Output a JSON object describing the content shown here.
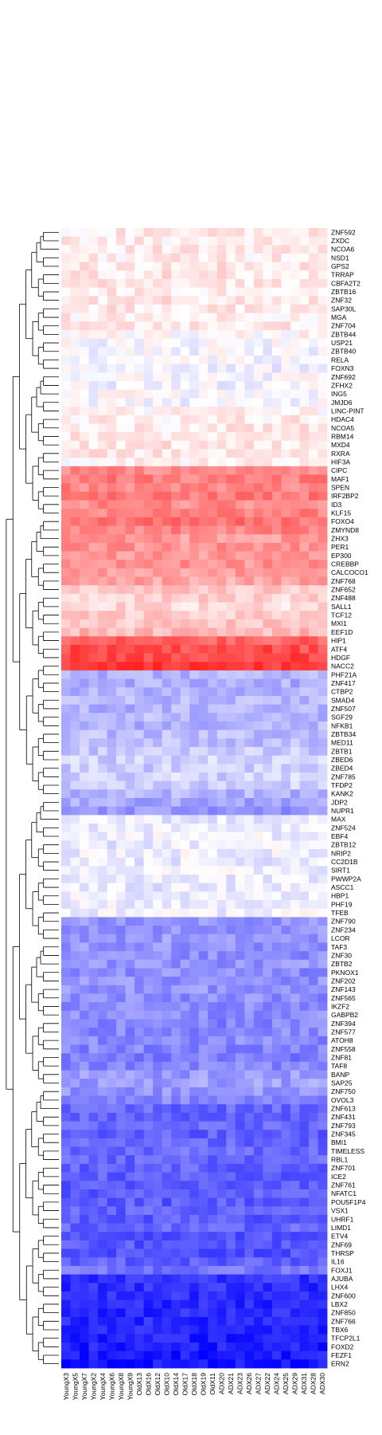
{
  "chart_data": {
    "type": "heatmap",
    "title": "",
    "color_scale": {
      "low": "#0000ff",
      "mid": "#ffffff",
      "high": "#ff0000",
      "range": [
        -1,
        1
      ]
    },
    "columns": [
      "YoungX3",
      "YoungX5",
      "YoungX7",
      "YoungX2",
      "YoungX4",
      "YoungX6",
      "YoungX8",
      "YoungX9",
      "OldX13",
      "OldX16",
      "OldX12",
      "OldX10",
      "OldX14",
      "OldX17",
      "OldX18",
      "OldX19",
      "OldX11",
      "ADX20",
      "ADX21",
      "ADX23",
      "ADX26",
      "ADX27",
      "ADX22",
      "ADX24",
      "ADX25",
      "ADX29",
      "ADX31",
      "ADX28",
      "ADX30"
    ],
    "rows": [
      {
        "label": "ZNF592",
        "value": 0.08
      },
      {
        "label": "ZXDC",
        "value": 0.07
      },
      {
        "label": "NCOA6",
        "value": 0.08
      },
      {
        "label": "NSD1",
        "value": 0.07
      },
      {
        "label": "GPS2",
        "value": 0.09
      },
      {
        "label": "TRRAP",
        "value": 0.1
      },
      {
        "label": "CBFA2T2",
        "value": 0.09
      },
      {
        "label": "ZBTB16",
        "value": 0.08
      },
      {
        "label": "ZNF32",
        "value": 0.1
      },
      {
        "label": "SAP30L",
        "value": 0.09
      },
      {
        "label": "MGA",
        "value": 0.07
      },
      {
        "label": "ZNF704",
        "value": 0.08
      },
      {
        "label": "ZBTB44",
        "value": 0.02
      },
      {
        "label": "USP21",
        "value": -0.02
      },
      {
        "label": "ZBTB40",
        "value": -0.03
      },
      {
        "label": "RELA",
        "value": -0.04
      },
      {
        "label": "FOXN3",
        "value": -0.05
      },
      {
        "label": "ZNF692",
        "value": -0.02
      },
      {
        "label": "ZFHX2",
        "value": -0.04
      },
      {
        "label": "ING5",
        "value": 0.0
      },
      {
        "label": "JMJD6",
        "value": -0.03
      },
      {
        "label": "LINC-PINT",
        "value": 0.05
      },
      {
        "label": "HDAC4",
        "value": 0.07
      },
      {
        "label": "NCOA5",
        "value": 0.08
      },
      {
        "label": "RBM14",
        "value": 0.09
      },
      {
        "label": "MXD4",
        "value": 0.1
      },
      {
        "label": "RXRA",
        "value": 0.09
      },
      {
        "label": "HIF3A",
        "value": 0.05
      },
      {
        "label": "CIPC",
        "value": 0.45
      },
      {
        "label": "MAF1",
        "value": 0.5
      },
      {
        "label": "SPEN",
        "value": 0.48
      },
      {
        "label": "IRF2BP2",
        "value": 0.52
      },
      {
        "label": "ID3",
        "value": 0.45
      },
      {
        "label": "KLF15",
        "value": 0.5
      },
      {
        "label": "FOXO4",
        "value": 0.55
      },
      {
        "label": "ZMYND8",
        "value": 0.48
      },
      {
        "label": "ZHX3",
        "value": 0.4
      },
      {
        "label": "PER1",
        "value": 0.42
      },
      {
        "label": "EP300",
        "value": 0.4
      },
      {
        "label": "CREBBP",
        "value": 0.42
      },
      {
        "label": "CALCOCO1",
        "value": 0.4
      },
      {
        "label": "ZNF768",
        "value": 0.35
      },
      {
        "label": "ZNF652",
        "value": 0.22
      },
      {
        "label": "ZNF488",
        "value": 0.18
      },
      {
        "label": "SALL1",
        "value": 0.15
      },
      {
        "label": "TCF12",
        "value": 0.2
      },
      {
        "label": "MXI1",
        "value": 0.22
      },
      {
        "label": "EEF1D",
        "value": 0.28
      },
      {
        "label": "HIP1",
        "value": 0.62
      },
      {
        "label": "ATF4",
        "value": 0.7
      },
      {
        "label": "HDGF",
        "value": 0.72
      },
      {
        "label": "NACC2",
        "value": 0.78
      },
      {
        "label": "PHF21A",
        "value": -0.3
      },
      {
        "label": "ZNF417",
        "value": -0.32
      },
      {
        "label": "CTBP2",
        "value": -0.3
      },
      {
        "label": "SMAD4",
        "value": -0.28
      },
      {
        "label": "ZNF507",
        "value": -0.3
      },
      {
        "label": "SGF29",
        "value": -0.28
      },
      {
        "label": "NFKB1",
        "value": -0.3
      },
      {
        "label": "ZBTB34",
        "value": -0.27
      },
      {
        "label": "MED11",
        "value": -0.25
      },
      {
        "label": "ZBTB1",
        "value": -0.22
      },
      {
        "label": "ZBED6",
        "value": -0.18
      },
      {
        "label": "ZBED4",
        "value": -0.2
      },
      {
        "label": "ZNF785",
        "value": -0.18
      },
      {
        "label": "TFDP2",
        "value": -0.2
      },
      {
        "label": "KANK2",
        "value": -0.3
      },
      {
        "label": "JDP2",
        "value": -0.35
      },
      {
        "label": "NUPR1",
        "value": -0.42
      },
      {
        "label": "MAX",
        "value": -0.08
      },
      {
        "label": "ZNF524",
        "value": -0.06
      },
      {
        "label": "EBF4",
        "value": -0.05
      },
      {
        "label": "ZBTB12",
        "value": -0.07
      },
      {
        "label": "NRIP2",
        "value": -0.05
      },
      {
        "label": "CC2D1B",
        "value": -0.08
      },
      {
        "label": "SIRT1",
        "value": -0.06
      },
      {
        "label": "PWWP2A",
        "value": -0.07
      },
      {
        "label": "ASCC1",
        "value": -0.08
      },
      {
        "label": "HBP1",
        "value": -0.06
      },
      {
        "label": "PHF19",
        "value": -0.05
      },
      {
        "label": "TFEB",
        "value": -0.04
      },
      {
        "label": "ZNF790",
        "value": -0.4
      },
      {
        "label": "ZNF234",
        "value": -0.42
      },
      {
        "label": "LCOR",
        "value": -0.4
      },
      {
        "label": "TAF3",
        "value": -0.42
      },
      {
        "label": "ZNF30",
        "value": -0.45
      },
      {
        "label": "ZBTB2",
        "value": -0.42
      },
      {
        "label": "PKNOX1",
        "value": -0.45
      },
      {
        "label": "ZNF202",
        "value": -0.43
      },
      {
        "label": "ZNF143",
        "value": -0.42
      },
      {
        "label": "ZNF565",
        "value": -0.45
      },
      {
        "label": "IKZF2",
        "value": -0.47
      },
      {
        "label": "GABPB2",
        "value": -0.45
      },
      {
        "label": "ZNF394",
        "value": -0.48
      },
      {
        "label": "ZNF577",
        "value": -0.47
      },
      {
        "label": "ATOH8",
        "value": -0.46
      },
      {
        "label": "ZNF558",
        "value": -0.48
      },
      {
        "label": "ZNF81",
        "value": -0.5
      },
      {
        "label": "TAF8",
        "value": -0.48
      },
      {
        "label": "BANP",
        "value": -0.4
      },
      {
        "label": "SAP25",
        "value": -0.38
      },
      {
        "label": "ZNF750",
        "value": -0.42
      },
      {
        "label": "OVOL3",
        "value": -0.45
      },
      {
        "label": "ZNF613",
        "value": -0.6
      },
      {
        "label": "ZNF431",
        "value": -0.62
      },
      {
        "label": "ZNF793",
        "value": -0.6
      },
      {
        "label": "ZNF345",
        "value": -0.62
      },
      {
        "label": "BMI1",
        "value": -0.6
      },
      {
        "label": "TIMELESS",
        "value": -0.58
      },
      {
        "label": "RBL1",
        "value": -0.6
      },
      {
        "label": "ZNF701",
        "value": -0.62
      },
      {
        "label": "ICE2",
        "value": -0.63
      },
      {
        "label": "ZNF761",
        "value": -0.65
      },
      {
        "label": "NFATC1",
        "value": -0.63
      },
      {
        "label": "POU5F1P4",
        "value": -0.65
      },
      {
        "label": "VSX1",
        "value": -0.62
      },
      {
        "label": "UHRF1",
        "value": -0.64
      },
      {
        "label": "LIMD1",
        "value": -0.6
      },
      {
        "label": "ETV4",
        "value": -0.68
      },
      {
        "label": "ZNF69",
        "value": -0.66
      },
      {
        "label": "THRSP",
        "value": -0.68
      },
      {
        "label": "IL16",
        "value": -0.62
      },
      {
        "label": "FOXJ1",
        "value": -0.55
      },
      {
        "label": "AJUBA",
        "value": -0.8
      },
      {
        "label": "LHX4",
        "value": -0.82
      },
      {
        "label": "ZNF600",
        "value": -0.82
      },
      {
        "label": "LBX2",
        "value": -0.84
      },
      {
        "label": "ZNF850",
        "value": -0.84
      },
      {
        "label": "ZNF766",
        "value": -0.85
      },
      {
        "label": "TBX6",
        "value": -0.86
      },
      {
        "label": "TFCP2L1",
        "value": -0.87
      },
      {
        "label": "FOXD2",
        "value": -0.88
      },
      {
        "label": "FEZF1",
        "value": -0.9
      },
      {
        "label": "ERN2",
        "value": -0.92
      }
    ]
  }
}
